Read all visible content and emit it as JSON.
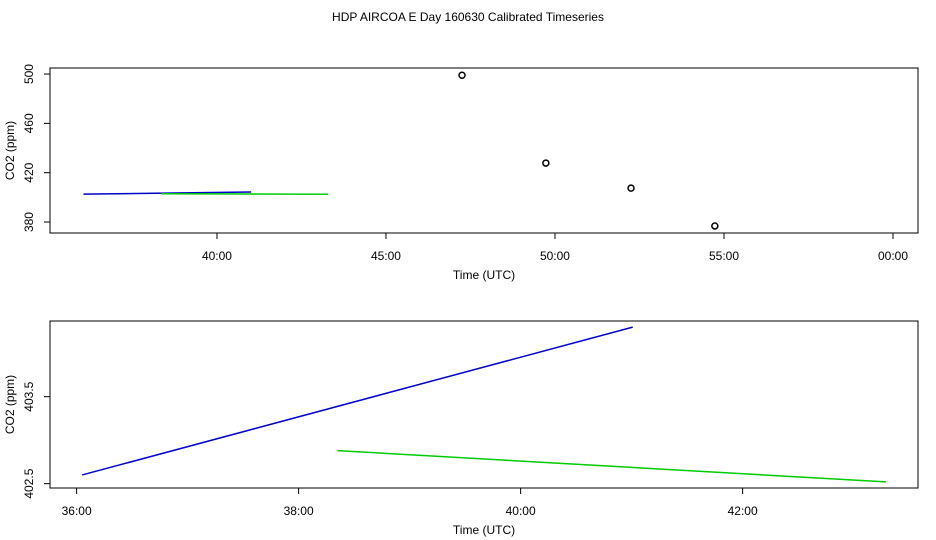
{
  "title": "HDP AIRCOA E  Day 160630  Calibrated Timeseries",
  "chart_data": [
    {
      "type": "line",
      "xlabel": "Time (UTC)",
      "ylabel": "CO2 (ppm)",
      "xlim": [
        35.06,
        60.74
      ],
      "ylim": [
        371.1,
        504.9
      ],
      "xticks": [
        {
          "value": 40,
          "label": "40:00"
        },
        {
          "value": 45,
          "label": "45:00"
        },
        {
          "value": 50,
          "label": "50:00"
        },
        {
          "value": 55,
          "label": "55:00"
        },
        {
          "value": 60,
          "label": "00:00"
        }
      ],
      "yticks": [
        380,
        420,
        460,
        500
      ],
      "series": [
        {
          "style": "points",
          "color": "#000000",
          "x": [
            47.25,
            49.73,
            52.25,
            54.73
          ],
          "values": [
            499,
            427.8,
            407.5,
            376.8
          ]
        },
        {
          "style": "line",
          "color": "#0000cc",
          "x": [
            36.05,
            41.01
          ],
          "values": [
            402.6,
            404.3
          ]
        },
        {
          "style": "line",
          "color": "#00cc00",
          "x": [
            38.35,
            43.29
          ],
          "values": [
            402.88,
            402.52
          ]
        }
      ]
    },
    {
      "type": "line",
      "xlabel": "Time (UTC)",
      "ylabel": "CO2 (ppm)",
      "xlim": [
        35.76,
        43.58
      ],
      "ylim": [
        402.45,
        404.37
      ],
      "xticks": [
        {
          "value": 36,
          "label": "36:00"
        },
        {
          "value": 38,
          "label": "38:00"
        },
        {
          "value": 40,
          "label": "40:00"
        },
        {
          "value": 42,
          "label": "42:00"
        }
      ],
      "yticks": [
        402.5,
        403.5
      ],
      "series": [
        {
          "style": "line",
          "color": "#0000cc",
          "x": [
            36.05,
            41.01
          ],
          "values": [
            402.6,
            404.3
          ]
        },
        {
          "style": "line",
          "color": "#00cc00",
          "x": [
            38.35,
            43.29
          ],
          "values": [
            402.88,
            402.52
          ]
        }
      ]
    }
  ]
}
